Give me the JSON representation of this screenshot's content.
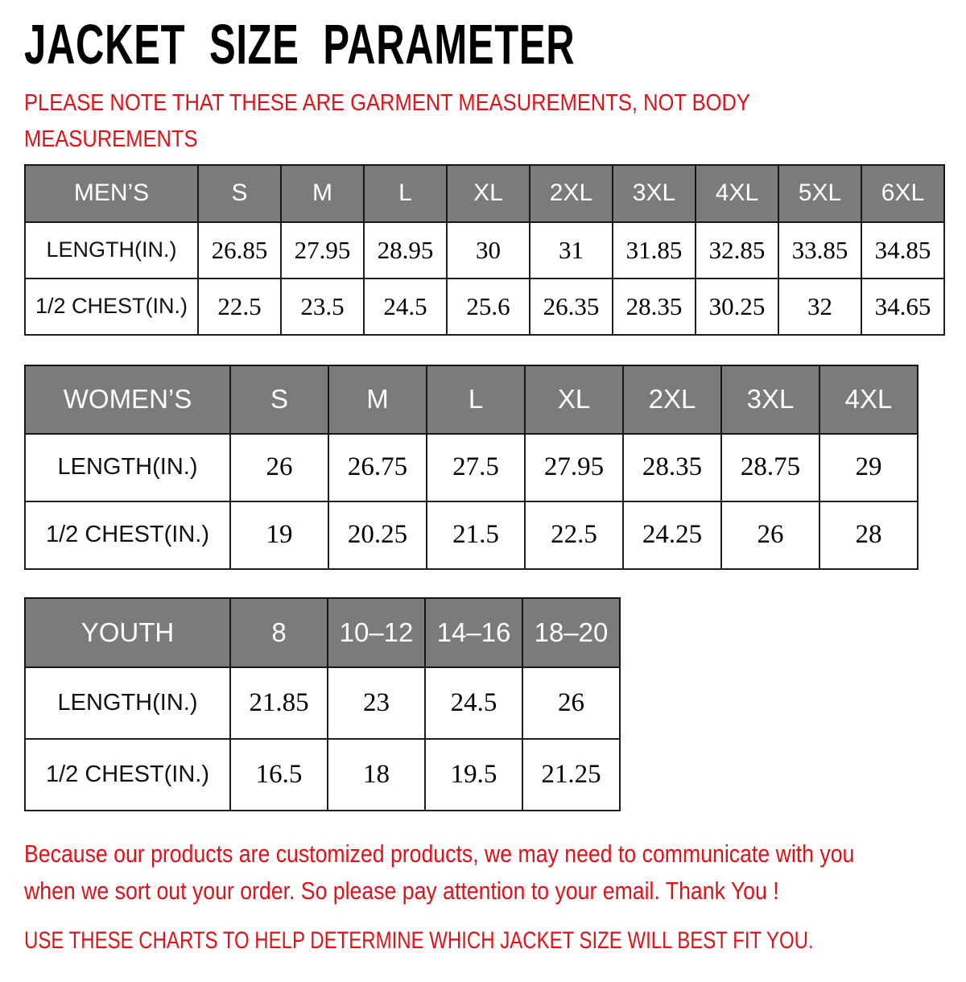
{
  "title": "JACKET SIZE PARAMETER",
  "note": {
    "line1": "PLEASE NOTE THAT THESE ARE GARMENT MEASUREMENTS, NOT BODY",
    "line2": "MEASUREMENTS"
  },
  "tables": [
    {
      "name": "MEN’S",
      "sizes": [
        "S",
        "M",
        "L",
        "XL",
        "2XL",
        "3XL",
        "4XL",
        "5XL",
        "6XL"
      ],
      "rows": [
        {
          "label": "LENGTH(IN.)",
          "values": [
            "26.85",
            "27.95",
            "28.95",
            "30",
            "31",
            "31.85",
            "32.85",
            "33.85",
            "34.85"
          ]
        },
        {
          "label": "1/2 CHEST(IN.)",
          "values": [
            "22.5",
            "23.5",
            "24.5",
            "25.6",
            "26.35",
            "28.35",
            "30.25",
            "32",
            "34.65"
          ]
        }
      ]
    },
    {
      "name": "WOMEN’S",
      "sizes": [
        "S",
        "M",
        "L",
        "XL",
        "2XL",
        "3XL",
        "4XL"
      ],
      "rows": [
        {
          "label": "LENGTH(IN.)",
          "values": [
            "26",
            "26.75",
            "27.5",
            "27.95",
            "28.35",
            "28.75",
            "29"
          ]
        },
        {
          "label": "1/2 CHEST(IN.)",
          "values": [
            "19",
            "20.25",
            "21.5",
            "22.5",
            "24.25",
            "26",
            "28"
          ]
        }
      ]
    },
    {
      "name": "YOUTH",
      "sizes": [
        "8",
        "10–12",
        "14–16",
        "18–20"
      ],
      "rows": [
        {
          "label": "LENGTH(IN.)",
          "values": [
            "21.85",
            "23",
            "24.5",
            "26"
          ]
        },
        {
          "label": "1/2 CHEST(IN.)",
          "values": [
            "16.5",
            "18",
            "19.5",
            "21.25"
          ]
        }
      ]
    }
  ],
  "footer": {
    "customization_line1": "Because our products are customized products, we may need to communicate with you",
    "customization_line2": "when we sort out your order. So please pay attention to your email. Thank You !",
    "usage_note": "USE THESE CHARTS TO HELP DETERMINE WHICH JACKET SIZE WILL BEST FIT YOU."
  },
  "colors": {
    "accent_red": "#e01218",
    "header_gray": "#7b7b7b",
    "border_dark": "#1e1e1e",
    "text_black": "#111111"
  }
}
